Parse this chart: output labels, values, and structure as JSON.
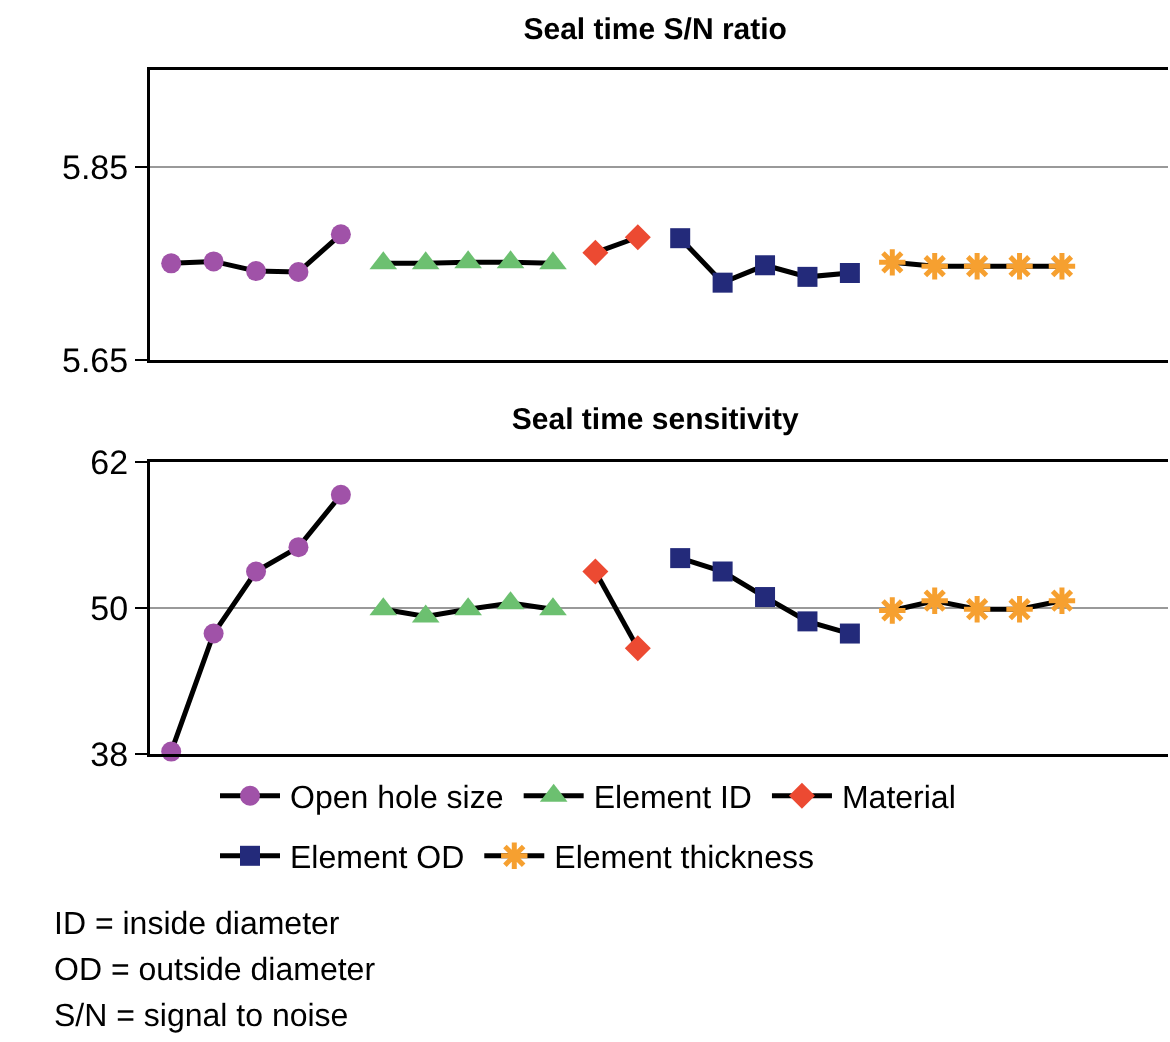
{
  "chart_data": [
    {
      "type": "line",
      "title": "Seal time S/N ratio",
      "categories": [
        null,
        null,
        null,
        null,
        null,
        null,
        null,
        null,
        null,
        null,
        null,
        null,
        null,
        null,
        null,
        null,
        null,
        null,
        null,
        null,
        null,
        null,
        null,
        null
      ],
      "ylim": [
        5.65,
        5.95
      ],
      "yticks": [
        5.65,
        5.85
      ],
      "grid": "y",
      "legend": false,
      "series": [
        {
          "color": "#a052a8",
          "marker": "circle",
          "values": [
            5.75,
            5.752,
            5.742,
            5.741,
            5.78,
            null,
            null,
            null,
            null,
            null,
            null,
            null,
            null,
            null,
            null,
            null,
            null,
            null,
            null,
            null,
            null,
            null,
            null,
            null
          ]
        },
        {
          "color": "#6cc070",
          "marker": "triangle",
          "values": [
            null,
            null,
            null,
            null,
            null,
            5.75,
            5.75,
            5.751,
            5.751,
            5.75,
            null,
            null,
            null,
            null,
            null,
            null,
            null,
            null,
            null,
            null,
            null,
            null,
            null,
            null
          ]
        },
        {
          "color": "#ec4a32",
          "marker": "diamond",
          "values": [
            null,
            null,
            null,
            null,
            null,
            null,
            null,
            null,
            null,
            null,
            5.761,
            5.777,
            null,
            null,
            null,
            null,
            null,
            null,
            null,
            null,
            null,
            null,
            null,
            null
          ]
        },
        {
          "color": "#232a7a",
          "marker": "square",
          "values": [
            null,
            null,
            null,
            null,
            null,
            null,
            null,
            null,
            null,
            null,
            null,
            null,
            5.776,
            5.73,
            5.748,
            5.736,
            5.74,
            null,
            null,
            null,
            null,
            null,
            null,
            null
          ]
        },
        {
          "color": "#f6a030",
          "marker": "cross",
          "values": [
            null,
            null,
            null,
            null,
            null,
            null,
            null,
            null,
            null,
            null,
            null,
            null,
            null,
            null,
            null,
            null,
            null,
            5.751,
            5.747,
            5.747,
            5.747,
            5.747,
            null,
            null
          ]
        }
      ]
    },
    {
      "type": "line",
      "title": "Seal time sensitivity",
      "categories": [
        null,
        null,
        null,
        null,
        null,
        null,
        null,
        null,
        null,
        null,
        null,
        null,
        null,
        null,
        null,
        null,
        null,
        null,
        null,
        null,
        null,
        null,
        null,
        null
      ],
      "ylim": [
        38,
        62
      ],
      "yticks": [
        38,
        50,
        62
      ],
      "grid": "y",
      "legend": "bottom",
      "annotations": [
        "ID = inside diameter",
        "OD = outside diameter",
        "S/N = signal to noise"
      ],
      "series": [
        {
          "name": "Open hole size",
          "color": "#a052a8",
          "marker": "circle",
          "values": [
            38.2,
            47.9,
            53.0,
            55.0,
            59.3,
            null,
            null,
            null,
            null,
            null,
            null,
            null,
            null,
            null,
            null,
            null,
            null,
            null,
            null,
            null,
            null,
            null,
            null,
            null
          ]
        },
        {
          "name": "Element ID",
          "color": "#6cc070",
          "marker": "triangle",
          "values": [
            null,
            null,
            null,
            null,
            null,
            49.9,
            49.3,
            49.9,
            50.4,
            49.9,
            null,
            null,
            null,
            null,
            null,
            null,
            null,
            null,
            null,
            null,
            null,
            null,
            null,
            null
          ]
        },
        {
          "name": "Material",
          "color": "#ec4a32",
          "marker": "diamond",
          "values": [
            null,
            null,
            null,
            null,
            null,
            null,
            null,
            null,
            null,
            null,
            53.0,
            46.7,
            null,
            null,
            null,
            null,
            null,
            null,
            null,
            null,
            null,
            null,
            null,
            null
          ]
        },
        {
          "name": "Element OD",
          "color": "#232a7a",
          "marker": "square",
          "values": [
            null,
            null,
            null,
            null,
            null,
            null,
            null,
            null,
            null,
            null,
            null,
            null,
            54.1,
            53.0,
            50.9,
            48.9,
            47.9,
            null,
            null,
            null,
            null,
            null,
            null,
            null
          ]
        },
        {
          "name": "Element thickness",
          "color": "#f6a030",
          "marker": "cross",
          "values": [
            null,
            null,
            null,
            null,
            null,
            null,
            null,
            null,
            null,
            null,
            null,
            null,
            null,
            null,
            null,
            null,
            null,
            49.8,
            50.6,
            49.9,
            49.9,
            50.6,
            null,
            null
          ]
        }
      ]
    }
  ]
}
